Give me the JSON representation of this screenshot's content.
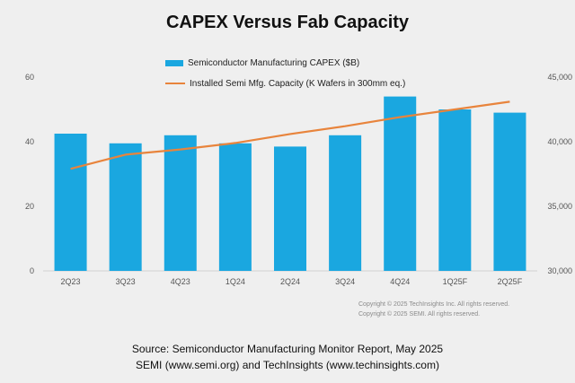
{
  "chart_data": {
    "type": "bar+line",
    "title": "CAPEX Versus Fab Capacity",
    "categories": [
      "2Q23",
      "3Q23",
      "4Q23",
      "1Q24",
      "2Q24",
      "3Q24",
      "4Q24",
      "1Q25F",
      "2Q25F"
    ],
    "series": [
      {
        "name": "Semiconductor Manufacturing CAPEX ($B)",
        "kind": "bar",
        "axis": "left",
        "values": [
          42.5,
          39.5,
          42,
          39.5,
          38.5,
          42,
          54,
          50,
          49
        ]
      },
      {
        "name": "Installed Semi Mfg. Capacity (K Wafers in 300mm eq.)",
        "kind": "line",
        "axis": "right",
        "values": [
          37900,
          39000,
          39400,
          39900,
          40600,
          41200,
          41900,
          42500,
          43100
        ]
      }
    ],
    "left_axis": {
      "ylim": [
        0,
        60
      ],
      "ticks": [
        "0",
        "20",
        "40",
        "60"
      ],
      "tick_values": [
        0,
        20,
        40,
        60
      ]
    },
    "right_axis": {
      "ylim": [
        30000,
        45000
      ],
      "ticks": [
        "30,000",
        "35,000",
        "40,000",
        "45,000"
      ],
      "tick_values": [
        30000,
        35000,
        40000,
        45000
      ]
    },
    "colors": {
      "bar": "#1aa7e0",
      "line": "#e8843c"
    }
  },
  "legend": {
    "bar_label": "Semiconductor Manufacturing CAPEX ($B)",
    "line_label": "Installed Semi Mfg. Capacity (K Wafers in 300mm eq.)"
  },
  "copyright": {
    "line1": "Copyright © 2025 TechInsights Inc.  All rights reserved.",
    "line2": "Copyright © 2025 SEMI.  All rights reserved."
  },
  "source": {
    "line1": "Source: Semiconductor Manufacturing Monitor Report, May 2025",
    "line2": "SEMI (www.semi.org) and TechInsights (www.techinsights.com)"
  }
}
